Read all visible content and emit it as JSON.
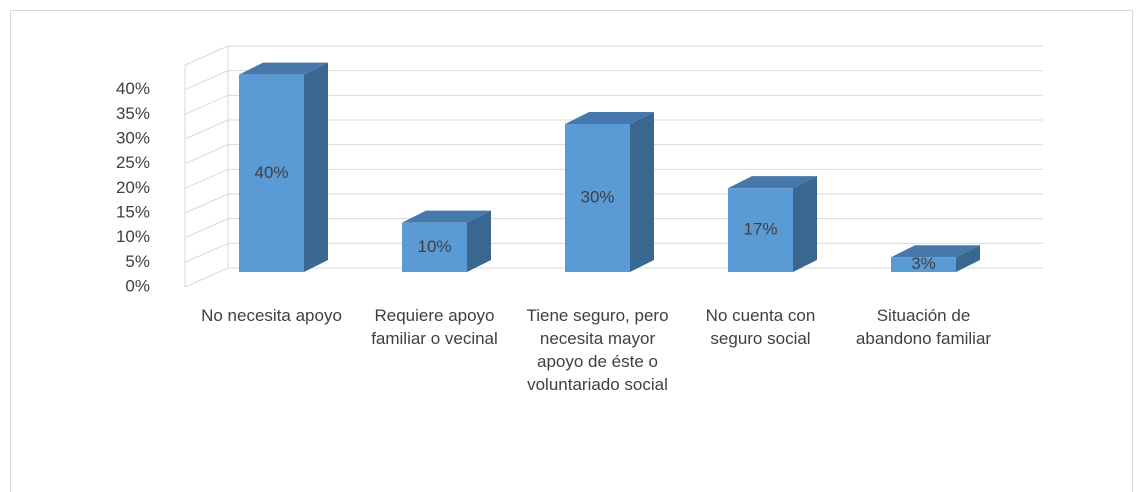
{
  "chart_data": {
    "type": "bar3d",
    "categories": [
      "No necesita apoyo",
      "Requiere apoyo familiar o vecinal",
      "Tiene seguro, pero necesita mayor apoyo de éste o voluntariado social",
      "No cuenta con seguro social",
      "Situación de abandono familiar"
    ],
    "values": [
      40,
      10,
      30,
      17,
      3
    ],
    "value_labels": [
      "40%",
      "10%",
      "30%",
      "17%",
      "3%"
    ],
    "color": "#5b9bd5",
    "ylim": [
      0,
      45
    ],
    "yticks": [
      {
        "value": 0,
        "label": "0%"
      },
      {
        "value": 5,
        "label": "5%"
      },
      {
        "value": 10,
        "label": "10%"
      },
      {
        "value": 15,
        "label": "15%"
      },
      {
        "value": 20,
        "label": "20%"
      },
      {
        "value": 25,
        "label": "25%"
      },
      {
        "value": 30,
        "label": "30%"
      },
      {
        "value": 35,
        "label": "35%"
      },
      {
        "value": 40,
        "label": "40%"
      }
    ],
    "grid": true
  }
}
